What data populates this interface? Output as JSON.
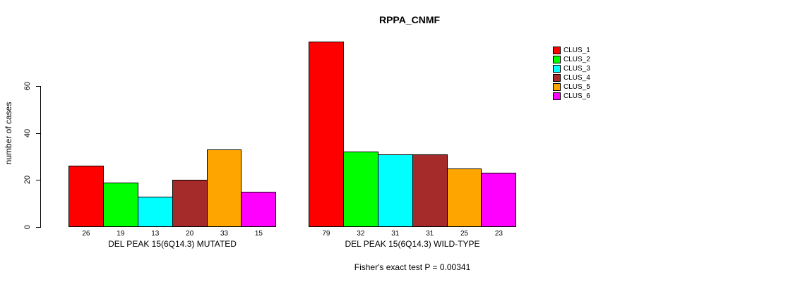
{
  "chart_data": {
    "type": "bar",
    "title": "RPPA_CNMF",
    "ylabel": "number of cases",
    "xlabel": "",
    "y_ticks": [
      0,
      20,
      40,
      60
    ],
    "ylim": [
      0,
      79
    ],
    "grid": false,
    "legend_position": "right",
    "categories": [
      "CLUS_1",
      "CLUS_2",
      "CLUS_3",
      "CLUS_4",
      "CLUS_5",
      "CLUS_6"
    ],
    "groups": [
      {
        "label": "DEL PEAK 15(6Q14.3) MUTATED",
        "values": [
          26,
          19,
          13,
          20,
          33,
          15
        ]
      },
      {
        "label": "DEL PEAK 15(6Q14.3) WILD-TYPE",
        "values": [
          79,
          32,
          31,
          31,
          25,
          23
        ]
      }
    ],
    "legend": [
      {
        "label": "CLUS_1",
        "color": "#FF0000"
      },
      {
        "label": "CLUS_2",
        "color": "#00FF00"
      },
      {
        "label": "CLUS_3",
        "color": "#00FFFF"
      },
      {
        "label": "CLUS_4",
        "color": "#A52A2A"
      },
      {
        "label": "CLUS_5",
        "color": "#FFA500"
      },
      {
        "label": "CLUS_6",
        "color": "#FF00FF"
      }
    ],
    "annotation": "Fisher's exact test P = 0.00341"
  }
}
